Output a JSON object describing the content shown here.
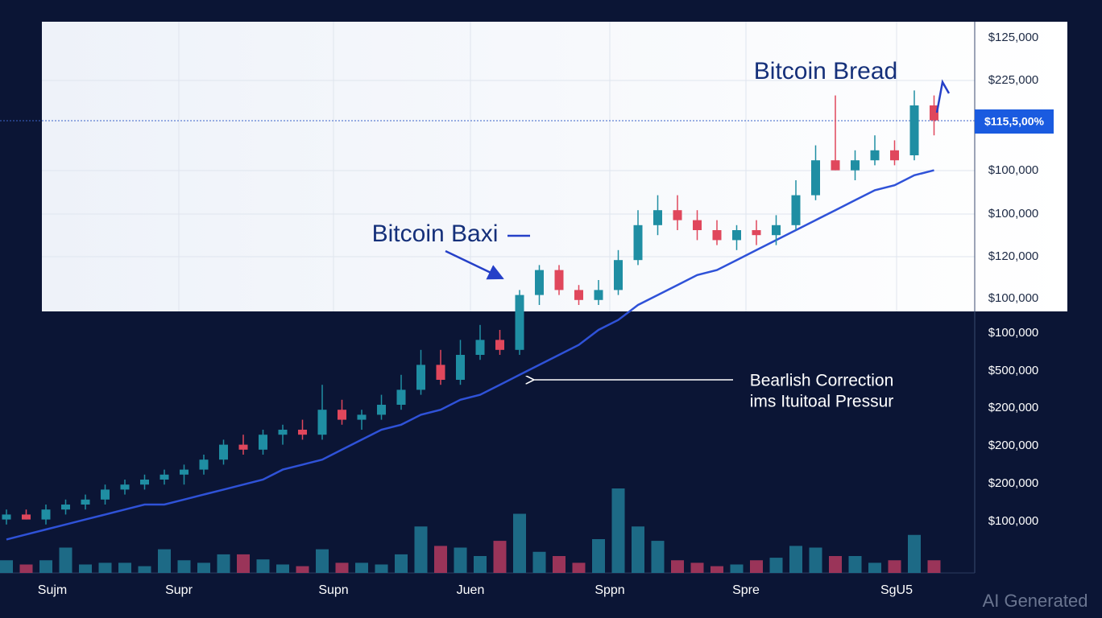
{
  "chart_data": {
    "type": "candlestick",
    "ylim": [
      0,
      100
    ],
    "up_color": "#1f8ea3",
    "down_color": "#e0475c",
    "candles": {
      "open": [
        12,
        13,
        12,
        14,
        15,
        16,
        18,
        19,
        20,
        21,
        22,
        24,
        27,
        26,
        29,
        30,
        29,
        34,
        32,
        33,
        35,
        38,
        43,
        40,
        45,
        48,
        46,
        57,
        62,
        58,
        56,
        58,
        64,
        71,
        74,
        72,
        70,
        68,
        70,
        69,
        71,
        77,
        84,
        82,
        84,
        86,
        85,
        95
      ],
      "high": [
        14,
        14,
        15,
        16,
        17,
        19,
        20,
        21,
        22,
        23,
        25,
        28,
        29,
        30,
        31,
        32,
        39,
        36,
        34,
        37,
        41,
        46,
        46,
        48,
        51,
        50,
        58,
        63,
        63,
        59,
        60,
        66,
        74,
        77,
        77,
        74,
        72,
        71,
        72,
        73,
        80,
        87,
        97,
        86,
        89,
        88,
        98,
        97
      ],
      "low": [
        11,
        12,
        11,
        13,
        14,
        15,
        17,
        18,
        19,
        19,
        21,
        23,
        25,
        25,
        27,
        28,
        28,
        31,
        30,
        32,
        34,
        37,
        39,
        39,
        44,
        45,
        45,
        55,
        57,
        55,
        55,
        57,
        63,
        69,
        70,
        68,
        67,
        66,
        67,
        67,
        70,
        76,
        82,
        80,
        83,
        83,
        84,
        89
      ],
      "close": [
        13,
        12,
        14,
        15,
        16,
        18,
        19,
        20,
        21,
        22,
        24,
        27,
        26,
        29,
        30,
        29,
        34,
        32,
        33,
        35,
        38,
        43,
        40,
        45,
        48,
        46,
        57,
        62,
        58,
        56,
        58,
        64,
        71,
        74,
        72,
        70,
        68,
        70,
        69,
        71,
        77,
        84,
        82,
        84,
        86,
        84,
        95,
        92
      ]
    },
    "volume": {
      "ylim": [
        0,
        100
      ],
      "values": [
        15,
        10,
        15,
        30,
        10,
        12,
        12,
        8,
        28,
        15,
        12,
        22,
        22,
        16,
        10,
        8,
        28,
        12,
        12,
        10,
        22,
        55,
        32,
        30,
        20,
        38,
        70,
        25,
        20,
        12,
        40,
        100,
        55,
        38,
        15,
        12,
        8,
        10,
        15,
        18,
        32,
        30,
        20,
        20,
        12,
        15,
        45,
        15
      ],
      "up_color": "#1d6a86",
      "down_color": "#9a3459"
    },
    "trend": {
      "color": "#2f52d8",
      "values": [
        8,
        9,
        10,
        11,
        12,
        13,
        14,
        15,
        15,
        16,
        17,
        18,
        19,
        20,
        22,
        23,
        24,
        26,
        28,
        30,
        31,
        33,
        34,
        36,
        37,
        39,
        41,
        43,
        45,
        47,
        50,
        52,
        55,
        57,
        59,
        61,
        62,
        64,
        66,
        68,
        70,
        72,
        74,
        76,
        78,
        79,
        81,
        82
      ]
    },
    "price_labels": [
      "$125,000",
      "$225,000",
      "$100,000",
      "$100,000",
      "$120,000",
      "$100,000",
      "$100,000",
      "$500,000",
      "$200,000",
      "$200,000",
      "$200,000",
      "$100,000"
    ],
    "current_price": "$115,5,00%",
    "x_labels": [
      "Sujm",
      "Supr",
      "Supn",
      "Juen",
      "Sppn",
      "Spre",
      "SgU5"
    ],
    "annotations": [
      "Bitcoin Bread",
      "Bitcoin Baxi",
      "Bearlish Correction",
      "ims Ituitoal Pressur"
    ]
  },
  "watermark": "AI Generated"
}
